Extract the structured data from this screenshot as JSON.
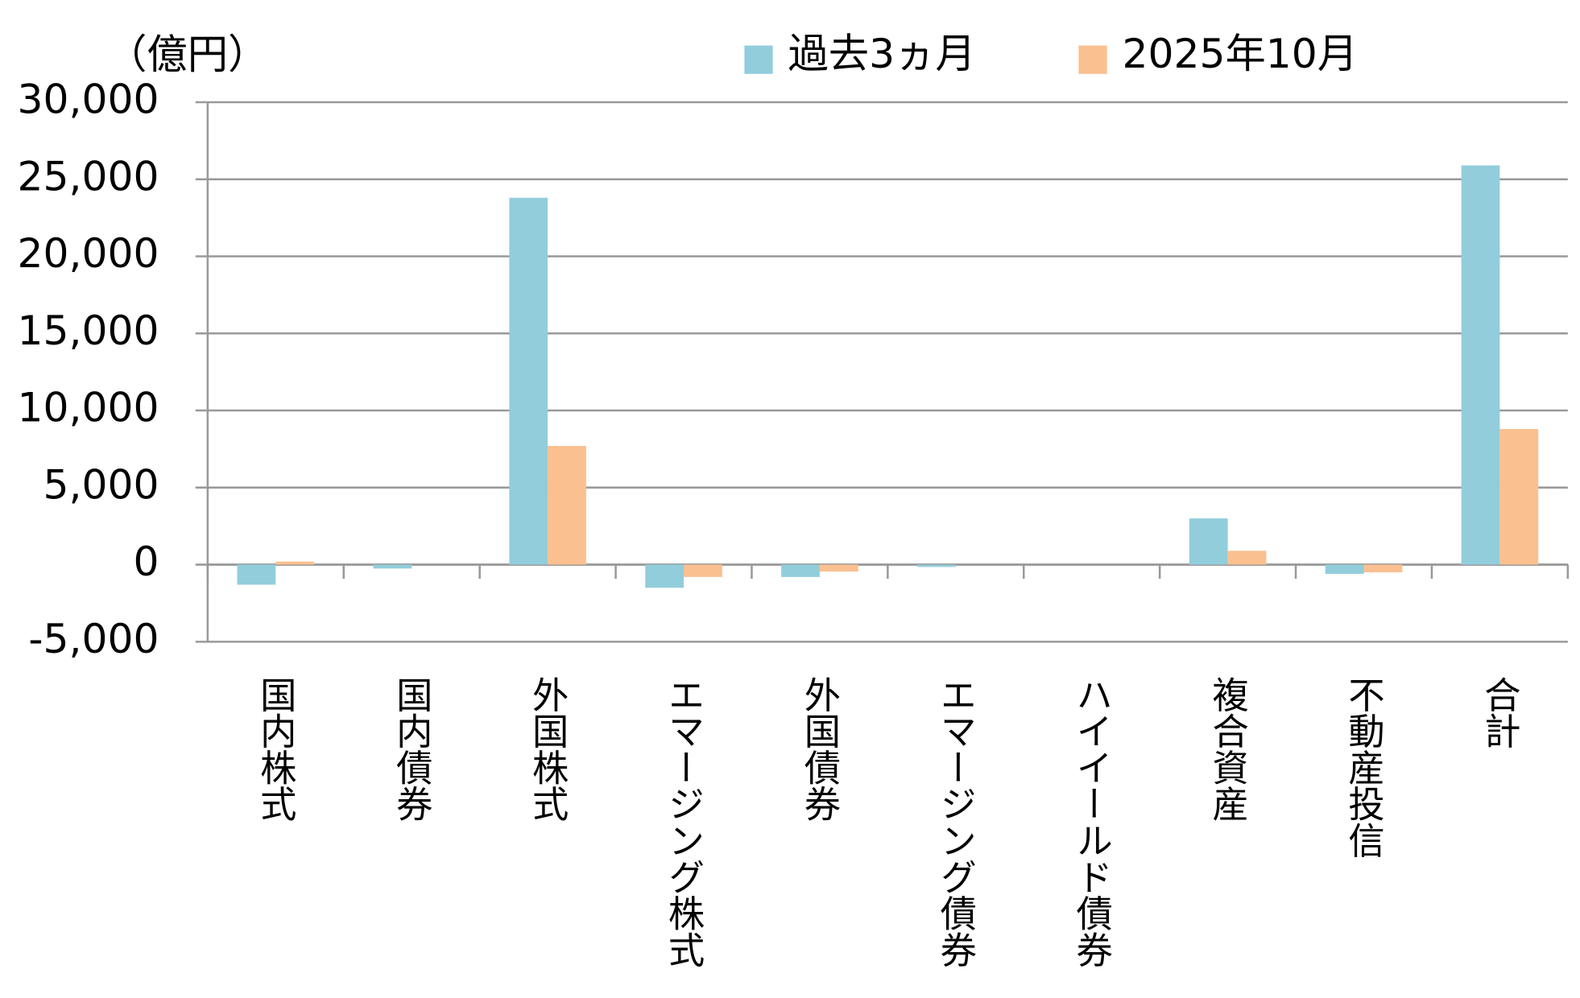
{
  "chart_data": {
    "type": "bar",
    "unit_label": "（億円）",
    "categories": [
      "国内株式",
      "国内債券",
      "外国株式",
      "エマージング株式",
      "外国債券",
      "エマージング債券",
      "ハイイールド債券",
      "複合資産",
      "不動産投信",
      "合計"
    ],
    "series": [
      {
        "name": "過去3ヵ月",
        "color": "#92cddc",
        "values": [
          -1300,
          -250,
          23800,
          -1500,
          -800,
          -150,
          0,
          3000,
          -600,
          25900
        ]
      },
      {
        "name": "2025年10月",
        "color": "#fac090",
        "values": [
          200,
          0,
          7700,
          -800,
          -450,
          0,
          0,
          900,
          -500,
          8800
        ]
      }
    ],
    "ylim": [
      -5000,
      30000
    ],
    "yticks": [
      {
        "value": -5000,
        "label": "-5,000"
      },
      0,
      {
        "value": 5000,
        "label": "5,000"
      },
      {
        "value": 10000,
        "label": "10,000"
      },
      {
        "value": 15000,
        "label": "15,000"
      },
      {
        "value": 20000,
        "label": "20,000"
      },
      {
        "value": 25000,
        "label": "25,000"
      },
      {
        "value": 30000,
        "label": "30,000"
      }
    ],
    "negative_tick_color": "#ff0000",
    "grid": true,
    "legend_position": "top"
  }
}
